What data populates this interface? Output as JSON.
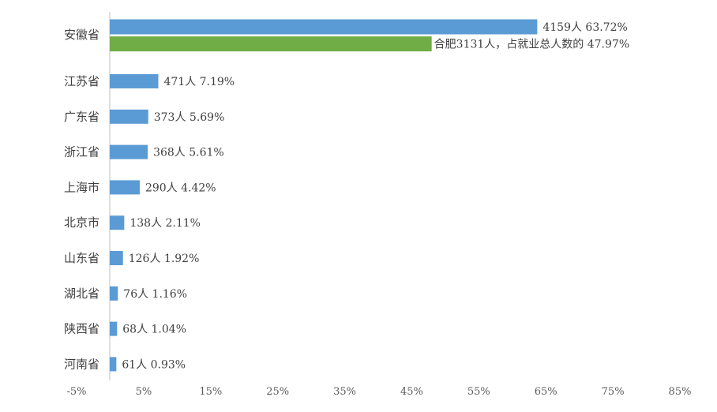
{
  "chart_data": {
    "type": "bar",
    "orientation": "horizontal",
    "xlim": [
      -5,
      85
    ],
    "xticks": [
      "-5%",
      "5%",
      "15%",
      "25%",
      "35%",
      "45%",
      "55%",
      "65%",
      "75%",
      "85%"
    ],
    "xtick_values": [
      -5,
      5,
      15,
      25,
      35,
      45,
      55,
      65,
      75,
      85
    ],
    "grid": false,
    "colors": {
      "primary": "#5b9bd5",
      "highlight": "#70ad47"
    },
    "rows": [
      {
        "category": "安徽省",
        "count": 4159,
        "percent": 63.72,
        "label": "4159人 63.72%",
        "sub": {
          "count": 3131,
          "percent": 47.97,
          "label": "合肥3131人，占就业总人数的 47.97%"
        }
      },
      {
        "category": "江苏省",
        "count": 471,
        "percent": 7.19,
        "label": "471人 7.19%"
      },
      {
        "category": "广东省",
        "count": 373,
        "percent": 5.69,
        "label": "373人 5.69%"
      },
      {
        "category": "浙江省",
        "count": 368,
        "percent": 5.61,
        "label": "368人 5.61%"
      },
      {
        "category": "上海市",
        "count": 290,
        "percent": 4.42,
        "label": "290人 4.42%"
      },
      {
        "category": "北京市",
        "count": 138,
        "percent": 2.11,
        "label": "138人 2.11%"
      },
      {
        "category": "山东省",
        "count": 126,
        "percent": 1.92,
        "label": "126人 1.92%"
      },
      {
        "category": "湖北省",
        "count": 76,
        "percent": 1.16,
        "label": "76人 1.16%"
      },
      {
        "category": "陕西省",
        "count": 68,
        "percent": 1.04,
        "label": "68人 1.04%"
      },
      {
        "category": "河南省",
        "count": 61,
        "percent": 0.93,
        "label": "61人 0.93%"
      }
    ]
  }
}
